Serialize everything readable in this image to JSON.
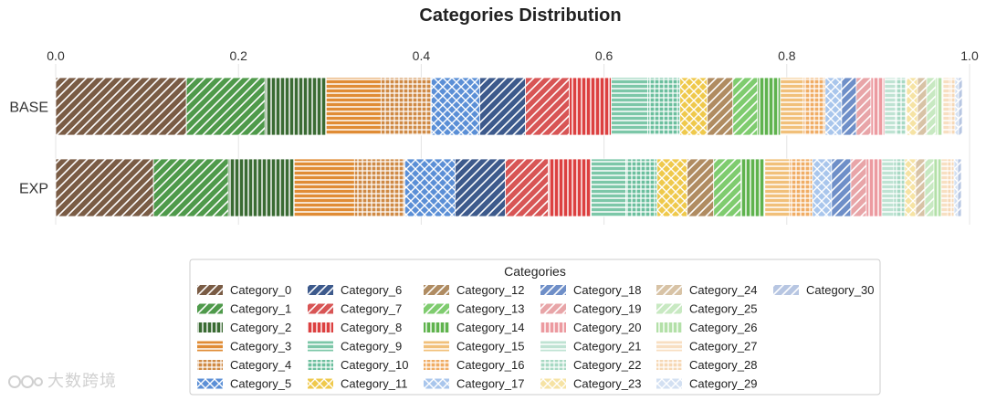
{
  "chart_data": {
    "type": "bar",
    "orientation": "horizontal",
    "stacked": true,
    "title": "Categories Distribution",
    "xlim": [
      0,
      1.0
    ],
    "xticks": [
      "0.0",
      "0.2",
      "0.4",
      "0.6",
      "0.8",
      "1.0"
    ],
    "xtick_values": [
      0,
      0.2,
      0.4,
      0.6,
      0.8,
      1.0
    ],
    "x_axis_position": "top",
    "grid": true,
    "categories": [
      "BASE",
      "EXP"
    ],
    "legend_title": "Categories",
    "legend_placement": "bottom-center",
    "series": [
      {
        "name": "Category_0",
        "values": [
          0.143,
          0.107
        ],
        "color": "#7a5c45",
        "pattern": "diag"
      },
      {
        "name": "Category_1",
        "values": [
          0.086,
          0.082
        ],
        "color": "#4f9a4b",
        "pattern": "diag"
      },
      {
        "name": "Category_2",
        "values": [
          0.067,
          0.072
        ],
        "color": "#3a6b33",
        "pattern": "vert"
      },
      {
        "name": "Category_3",
        "values": [
          0.06,
          0.066
        ],
        "color": "#e08c35",
        "pattern": "horiz"
      },
      {
        "name": "Category_4",
        "values": [
          0.055,
          0.055
        ],
        "color": "#cf8a45",
        "pattern": "grid"
      },
      {
        "name": "Category_5",
        "values": [
          0.053,
          0.055
        ],
        "color": "#5b8fd6",
        "pattern": "cross"
      },
      {
        "name": "Category_6",
        "values": [
          0.05,
          0.055
        ],
        "color": "#3d5a8c",
        "pattern": "diag"
      },
      {
        "name": "Category_7",
        "values": [
          0.048,
          0.047
        ],
        "color": "#d85555",
        "pattern": "diag"
      },
      {
        "name": "Category_8",
        "values": [
          0.046,
          0.047
        ],
        "color": "#dc4040",
        "pattern": "vert"
      },
      {
        "name": "Category_9",
        "values": [
          0.04,
          0.038
        ],
        "color": "#7cc7a8",
        "pattern": "horiz"
      },
      {
        "name": "Category_10",
        "values": [
          0.035,
          0.034
        ],
        "color": "#6cbf9e",
        "pattern": "grid"
      },
      {
        "name": "Category_11",
        "values": [
          0.03,
          0.033
        ],
        "color": "#efc94c",
        "pattern": "cross"
      },
      {
        "name": "Category_12",
        "values": [
          0.028,
          0.029
        ],
        "color": "#b08c62",
        "pattern": "diag"
      },
      {
        "name": "Category_13",
        "values": [
          0.027,
          0.03
        ],
        "color": "#7fcc6f",
        "pattern": "diag"
      },
      {
        "name": "Category_14",
        "values": [
          0.025,
          0.026
        ],
        "color": "#5fb34e",
        "pattern": "vert"
      },
      {
        "name": "Category_15",
        "values": [
          0.025,
          0.027
        ],
        "color": "#f1c07a",
        "pattern": "horiz"
      },
      {
        "name": "Category_16",
        "values": [
          0.024,
          0.025
        ],
        "color": "#f0ad65",
        "pattern": "grid"
      },
      {
        "name": "Category_17",
        "values": [
          0.018,
          0.021
        ],
        "color": "#a9c6ec",
        "pattern": "cross"
      },
      {
        "name": "Category_18",
        "values": [
          0.016,
          0.021
        ],
        "color": "#6f8fc8",
        "pattern": "diag"
      },
      {
        "name": "Category_19",
        "values": [
          0.016,
          0.017
        ],
        "color": "#e8a5a8",
        "pattern": "diag"
      },
      {
        "name": "Category_20",
        "values": [
          0.015,
          0.017
        ],
        "color": "#ec9aa0",
        "pattern": "vert"
      },
      {
        "name": "Category_21",
        "values": [
          0.012,
          0.013
        ],
        "color": "#bfe3d3",
        "pattern": "horiz"
      },
      {
        "name": "Category_22",
        "values": [
          0.012,
          0.012
        ],
        "color": "#a8d9c4",
        "pattern": "grid"
      },
      {
        "name": "Category_23",
        "values": [
          0.012,
          0.012
        ],
        "color": "#f6e3a4",
        "pattern": "cross"
      },
      {
        "name": "Category_24",
        "values": [
          0.01,
          0.01
        ],
        "color": "#d8c3a6",
        "pattern": "diag"
      },
      {
        "name": "Category_25",
        "values": [
          0.01,
          0.01
        ],
        "color": "#c8e9c2",
        "pattern": "diag"
      },
      {
        "name": "Category_26",
        "values": [
          0.008,
          0.008
        ],
        "color": "#b3e0a8",
        "pattern": "vert"
      },
      {
        "name": "Category_27",
        "values": [
          0.007,
          0.007
        ],
        "color": "#f8dfc2",
        "pattern": "horiz"
      },
      {
        "name": "Category_28",
        "values": [
          0.006,
          0.007
        ],
        "color": "#f6d8b5",
        "pattern": "grid"
      },
      {
        "name": "Category_29",
        "values": [
          0.004,
          0.004
        ],
        "color": "#d3e0f2",
        "pattern": "cross"
      },
      {
        "name": "Category_30",
        "values": [
          0.004,
          0.004
        ],
        "color": "#b7c6e2",
        "pattern": "diag"
      }
    ]
  },
  "watermark": {
    "text": "大数跨境"
  }
}
